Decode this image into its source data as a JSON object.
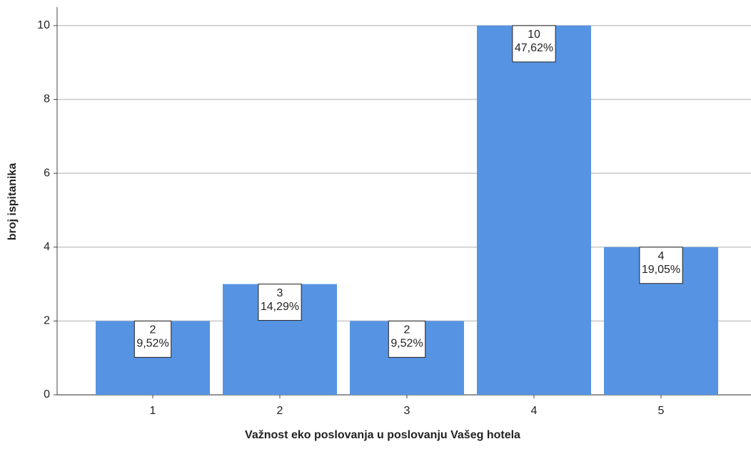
{
  "chart_data": {
    "type": "bar",
    "x_label": "Važnost eko poslovanja u poslovanju Vašeg hotela",
    "y_label": "broj ispitanika",
    "categories": [
      "1",
      "2",
      "3",
      "4",
      "5"
    ],
    "values": [
      2,
      3,
      2,
      10,
      4
    ],
    "percent_labels": [
      "9,52%",
      "14,29%",
      "9,52%",
      "47,62%",
      "19,05%"
    ],
    "color": "#5694e3",
    "ylim": [
      0,
      10.5
    ],
    "yticks": [
      0,
      2,
      4,
      6,
      8,
      10
    ],
    "grid": true
  }
}
